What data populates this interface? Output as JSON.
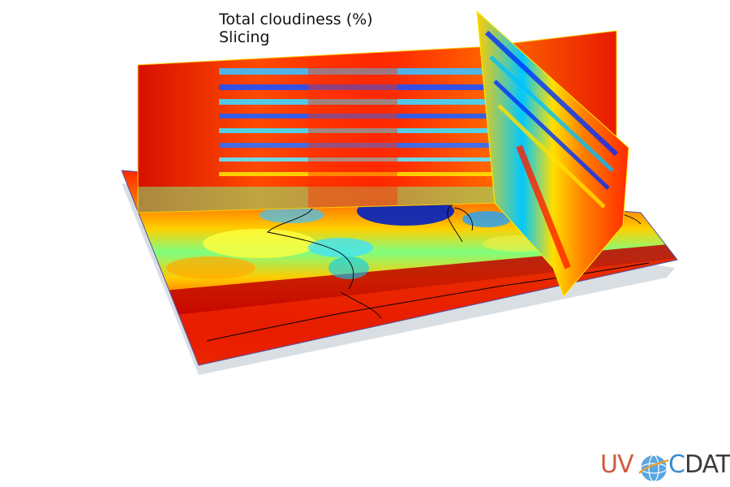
{
  "window": {
    "title_line1": "Total cloudiness (%)",
    "title_line2": "Slicing"
  },
  "logo": {
    "text": "UV-CDAT",
    "part_uv": "UV",
    "part_c": "C",
    "part_dat": "DAT"
  },
  "colors": {
    "background": "#ffffff",
    "colormap": [
      "#00007f",
      "#0000ff",
      "#007fff",
      "#00ffff",
      "#7fff7f",
      "#ffff00",
      "#ff7f00",
      "#ff0000",
      "#7f0000"
    ],
    "logo_uv": "#d25a3c",
    "logo_c": "#3c8ccc",
    "logo_dat": "#3c3c3c",
    "coastline": "#000000"
  },
  "icons": {
    "logo_globe": "globe-icon"
  }
}
